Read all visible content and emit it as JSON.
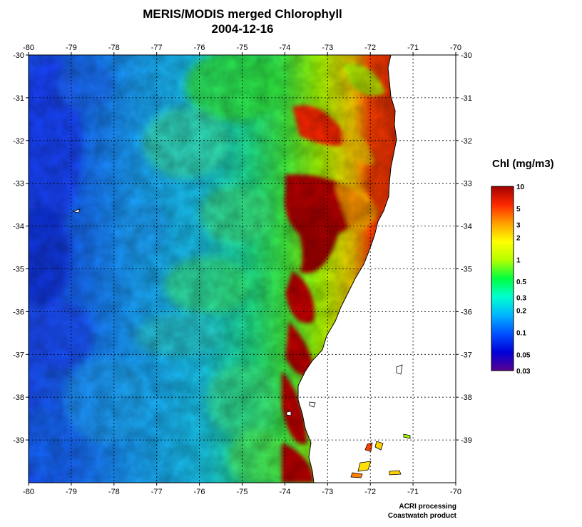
{
  "title": {
    "line1": "MERIS/MODIS merged Chlorophyll",
    "line2": "2004-12-16"
  },
  "map": {
    "lon_range": [
      -80,
      -70
    ],
    "lat_range": [
      -40,
      -30
    ],
    "lon_ticks": [
      "-80",
      "-79",
      "-78",
      "-77",
      "-76",
      "-75",
      "-74",
      "-73",
      "-72",
      "-71",
      "-70"
    ],
    "lat_ticks": [
      "-30",
      "-31",
      "-32",
      "-33",
      "-34",
      "-35",
      "-36",
      "-37",
      "-38",
      "-39"
    ],
    "grid": "dotted",
    "land_color": "#ffffff",
    "coastline_color": "#000000"
  },
  "legend": {
    "title": "Chl (mg/m3)",
    "scale": "log",
    "range": [
      0.03,
      10
    ],
    "labels": [
      "10",
      "5",
      "3",
      "2",
      "1",
      "0.5",
      "0.3",
      "0.2",
      "0.1",
      "0.05",
      "0.03"
    ],
    "colors": [
      "#5a0090",
      "#0000d8",
      "#0050ff",
      "#00b4ff",
      "#00ffd0",
      "#00ff40",
      "#b4ff00",
      "#ffff00",
      "#ffa000",
      "#ff2800",
      "#a00000"
    ]
  },
  "credits": {
    "line1": "ACRI processing",
    "line2": "Coastwatch product"
  }
}
